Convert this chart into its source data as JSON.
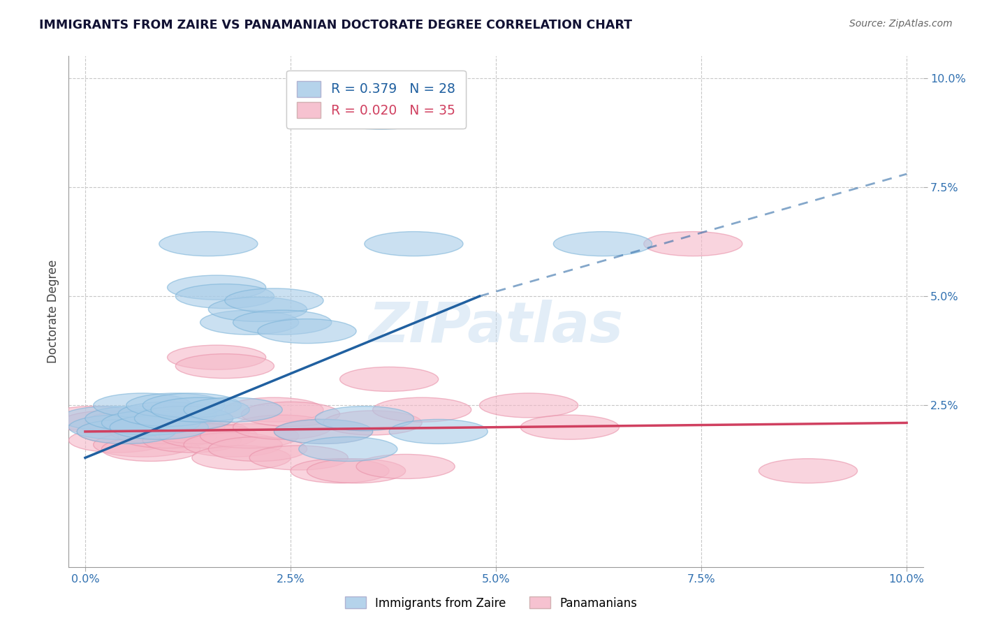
{
  "title": "IMMIGRANTS FROM ZAIRE VS PANAMANIAN DOCTORATE DEGREE CORRELATION CHART",
  "source": "Source: ZipAtlas.com",
  "ylabel": "Doctorate Degree",
  "xlim": [
    -0.002,
    0.102
  ],
  "ylim": [
    -0.012,
    0.105
  ],
  "xplot_min": 0.0,
  "xplot_max": 0.1,
  "yplot_min": 0.0,
  "yplot_max": 0.1,
  "xtick_labels": [
    "0.0%",
    "2.5%",
    "5.0%",
    "7.5%",
    "10.0%"
  ],
  "xtick_values": [
    0.0,
    0.025,
    0.05,
    0.075,
    0.1
  ],
  "ytick_labels": [
    "2.5%",
    "5.0%",
    "7.5%",
    "10.0%"
  ],
  "ytick_values": [
    0.025,
    0.05,
    0.075,
    0.1
  ],
  "blue_R": "0.379",
  "blue_N": "28",
  "pink_R": "0.020",
  "pink_N": "35",
  "blue_color": "#a8cce8",
  "blue_edge_color": "#7ab3d8",
  "pink_color": "#f5b8c8",
  "pink_edge_color": "#e890a8",
  "blue_line_color": "#2060a0",
  "pink_line_color": "#d04060",
  "blue_scatter": [
    [
      0.003,
      0.022
    ],
    [
      0.004,
      0.02
    ],
    [
      0.005,
      0.019
    ],
    [
      0.006,
      0.022
    ],
    [
      0.007,
      0.025
    ],
    [
      0.008,
      0.021
    ],
    [
      0.009,
      0.02
    ],
    [
      0.01,
      0.023
    ],
    [
      0.011,
      0.025
    ],
    [
      0.012,
      0.022
    ],
    [
      0.013,
      0.025
    ],
    [
      0.014,
      0.024
    ],
    [
      0.015,
      0.062
    ],
    [
      0.016,
      0.052
    ],
    [
      0.017,
      0.05
    ],
    [
      0.018,
      0.024
    ],
    [
      0.02,
      0.044
    ],
    [
      0.021,
      0.047
    ],
    [
      0.023,
      0.049
    ],
    [
      0.024,
      0.044
    ],
    [
      0.027,
      0.042
    ],
    [
      0.029,
      0.019
    ],
    [
      0.032,
      0.015
    ],
    [
      0.034,
      0.022
    ],
    [
      0.036,
      0.091
    ],
    [
      0.04,
      0.062
    ],
    [
      0.043,
      0.019
    ],
    [
      0.063,
      0.062
    ]
  ],
  "pink_scatter": [
    [
      0.001,
      0.022
    ],
    [
      0.003,
      0.021
    ],
    [
      0.004,
      0.017
    ],
    [
      0.005,
      0.019
    ],
    [
      0.006,
      0.021
    ],
    [
      0.007,
      0.016
    ],
    [
      0.008,
      0.015
    ],
    [
      0.009,
      0.019
    ],
    [
      0.01,
      0.018
    ],
    [
      0.011,
      0.02
    ],
    [
      0.012,
      0.022
    ],
    [
      0.013,
      0.017
    ],
    [
      0.014,
      0.019
    ],
    [
      0.015,
      0.018
    ],
    [
      0.016,
      0.036
    ],
    [
      0.017,
      0.034
    ],
    [
      0.018,
      0.016
    ],
    [
      0.019,
      0.013
    ],
    [
      0.02,
      0.018
    ],
    [
      0.021,
      0.015
    ],
    [
      0.023,
      0.024
    ],
    [
      0.024,
      0.02
    ],
    [
      0.025,
      0.023
    ],
    [
      0.026,
      0.013
    ],
    [
      0.029,
      0.019
    ],
    [
      0.031,
      0.01
    ],
    [
      0.033,
      0.01
    ],
    [
      0.035,
      0.021
    ],
    [
      0.037,
      0.031
    ],
    [
      0.039,
      0.011
    ],
    [
      0.041,
      0.024
    ],
    [
      0.054,
      0.025
    ],
    [
      0.059,
      0.02
    ],
    [
      0.074,
      0.062
    ],
    [
      0.088,
      0.01
    ]
  ],
  "blue_trendline_solid": [
    [
      0.0,
      0.013
    ],
    [
      0.048,
      0.05
    ]
  ],
  "blue_trendline_dashed": [
    [
      0.048,
      0.05
    ],
    [
      0.1,
      0.078
    ]
  ],
  "pink_trendline": [
    [
      0.0,
      0.019
    ],
    [
      0.1,
      0.021
    ]
  ],
  "watermark": "ZIPatlas",
  "background_color": "#ffffff",
  "grid_color": "#c8c8c8"
}
